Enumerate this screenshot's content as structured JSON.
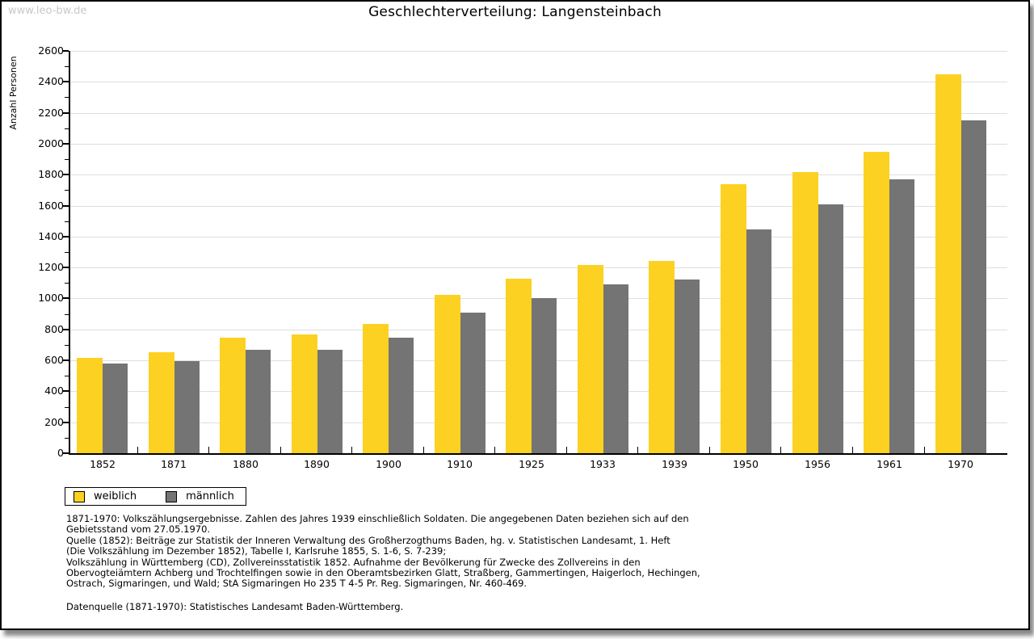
{
  "watermark": "www.leo-bw.de",
  "title": "Geschlechterverteilung: Langensteinbach",
  "datasource": "Datenquelle (1871-1970): Statistisches Landesamt Baden-Württemberg.",
  "footnotes": [
    "1871-1970: Volkszählungsergebnisse. Zahlen des Jahres 1939 einschließlich Soldaten. Die angegebenen Daten beziehen sich auf den",
    "Gebietsstand vom 27.05.1970.",
    "Quelle (1852): Beiträge zur Statistik der Inneren Verwaltung des Großherzogthums Baden, hg. v. Statistischen Landesamt, 1. Heft",
    "(Die Volkszählung im Dezember 1852), Tabelle I, Karlsruhe 1855, S. 1-6, S. 7-239;",
    "Volkszählung in Württemberg (CD), Zollvereinsstatistik 1852. Aufnahme der Bevölkerung für Zwecke des Zollvereins in den",
    "Obervogteiämtern Achberg und Trochtelfingen sowie in den Oberamtsbezirken Glatt, Straßberg, Gammertingen, Haigerloch, Hechingen,",
    "Ostrach, Sigmaringen, und Wald; StA Sigmaringen Ho 235 T 4-5 Pr. Reg. Sigmaringen, Nr. 460-469."
  ],
  "chart_data": {
    "type": "bar",
    "title": "Geschlechterverteilung: Langensteinbach",
    "xlabel": "",
    "ylabel": "Anzahl Personen",
    "categories": [
      "1852",
      "1871",
      "1880",
      "1890",
      "1900",
      "1910",
      "1925",
      "1933",
      "1939",
      "1950",
      "1956",
      "1961",
      "1970"
    ],
    "series": [
      {
        "name": "weiblich",
        "color": "#fcd122",
        "values": [
          615,
          650,
          745,
          770,
          835,
          1025,
          1130,
          1215,
          1245,
          1740,
          1815,
          1945,
          2450
        ]
      },
      {
        "name": "männlich",
        "color": "#747474",
        "values": [
          580,
          595,
          670,
          670,
          745,
          910,
          1005,
          1090,
          1120,
          1445,
          1610,
          1770,
          2150
        ]
      }
    ],
    "ylim": [
      0,
      2600
    ],
    "ytick_step": 200,
    "ytick_minor_step": 100,
    "grid": true,
    "gridline_color": "#dedede",
    "legend_position": "bottom-left"
  }
}
